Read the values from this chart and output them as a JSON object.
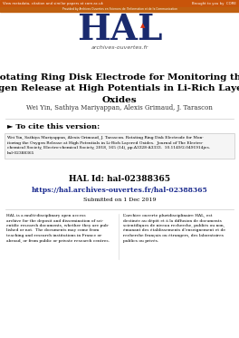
{
  "top_bar_color": "#c8540a",
  "second_bar_color": "#c06010",
  "top_text_left": "View metadata, citation and similar papers at core.ac.uk",
  "top_text_right": "Brought to you by  CORE",
  "second_bar_text": "Provided by Archives Ouvertes en Sciences de l'Information et de la Communication",
  "hal_logo_color": "#1a2a6e",
  "hal_subtitle": "archives-ouvertes.fr",
  "paper_title": "Rotating Ring Disk Electrode for Monitoring the\nOxygen Release at High Potentials in Li-Rich Layered\nOxides",
  "paper_authors": "Wei Yin, Sathiya Mariyappan, Alexis Grimaud, J. Tarascon",
  "cite_header": "► To cite this version:",
  "cite_text": "Wei Yin, Sathiya Mariyappan, Alexis Grimaud, J. Tarascon. Rotating Ring Disk Electrode for Mon-\nitoring the Oxygen Release at High Potentials in Li-Rich Layered Oxides.  Journal of The Electro-\nchemical Society, Electro-chemical Society, 2018, 165 (14), pp.A3328-A3333.  10.1149/2.0491914jes.\nhal-02388365",
  "hal_id_label": "HAL Id: hal-02388365",
  "hal_url": "https://hal.archives-ouvertes.fr/hal-02388365",
  "submitted": "Submitted on 1 Dec 2019",
  "left_body": "HAL is a multi-disciplinary open access\narchive for the deposit and dissemination of sci-\nentific research documents, whether they are pub-\nlished or not.  The documents may come from\nteaching and research institutions in France or\nabroad, or from public or private research centres.",
  "right_body": "L’archive ouverte pluridisciplinaire HAL, est\ndestinée au dépôt et à la diffusion de documents\nscientifiques de niveau recherche, publiés ou non,\némanant des établissements d’enseignement et de\nrecherche français ou étrangers, des laboratoires\npublics ou privés.",
  "bg_color": "#ffffff",
  "cite_box_color": "#f5f5f5"
}
